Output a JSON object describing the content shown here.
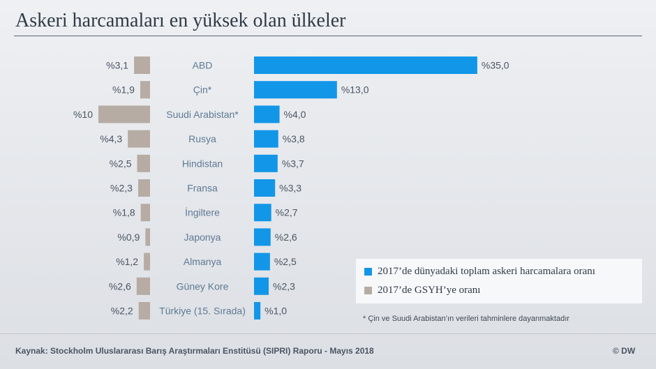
{
  "title": "Askeri harcamaları en yüksek olan ülkeler",
  "legend": {
    "world_share": "2017’de dünyadaki toplam askeri harcamalara oranı",
    "gdp_share": "2017’de GSYH’ye oranı"
  },
  "note": "* Çin ve Suudi Arabistan’ın verileri tahminlere dayanmaktadır",
  "source": "Kaynak: Stockholm Uluslararası Barış Araştırmaları Enstitüsü (SIPRI) Raporu - Mayıs 2018",
  "copyright": "© DW",
  "colors": {
    "world_share": "#1296e8",
    "gdp_share": "#b6aca4"
  },
  "chart_data": {
    "type": "bar",
    "orientation": "horizontal",
    "categories": [
      "ABD",
      "Çin*",
      "Suudi Arabistan*",
      "Rusya",
      "Hindistan",
      "Fransa",
      "İngiltere",
      "Japonya",
      "Almanya",
      "Güney Kore",
      "Türkiye (15. Sırada)"
    ],
    "series": [
      {
        "name": "2017’de dünyadaki toplam askeri harcamalara oranı",
        "values": [
          35.0,
          13.0,
          4.0,
          3.8,
          3.7,
          3.3,
          2.7,
          2.6,
          2.5,
          2.3,
          1.0
        ],
        "labels": [
          "%35,0",
          "%13,0",
          "%4,0",
          "%3,8",
          "%3,7",
          "%3,3",
          "%2,7",
          "%2,6",
          "%2,5",
          "%2,3",
          "%1,0"
        ]
      },
      {
        "name": "2017’de GSYH’ye oranı",
        "values": [
          3.1,
          1.9,
          10,
          4.3,
          2.5,
          2.3,
          1.8,
          0.9,
          1.2,
          2.6,
          2.2
        ],
        "labels": [
          "%3,1",
          "%1,9",
          "%10",
          "%4,3",
          "%2,5",
          "%2,3",
          "%1,8",
          "%0,9",
          "%1,2",
          "%2,6",
          "%2,2"
        ]
      }
    ],
    "legend_position": "bottom-right",
    "grid": false
  }
}
